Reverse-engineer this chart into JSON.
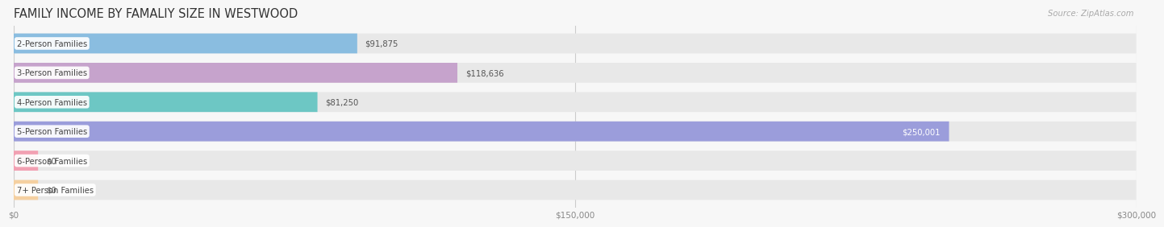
{
  "title": "FAMILY INCOME BY FAMALIY SIZE IN WESTWOOD",
  "source": "Source: ZipAtlas.com",
  "categories": [
    "2-Person Families",
    "3-Person Families",
    "4-Person Families",
    "5-Person Families",
    "6-Person Families",
    "7+ Person Families"
  ],
  "values": [
    91875,
    118636,
    81250,
    250001,
    0,
    0
  ],
  "bar_colors": [
    "#8abde0",
    "#c6a3cc",
    "#6dc7c4",
    "#9b9ddb",
    "#f2a0b2",
    "#f5d0a0"
  ],
  "label_colors": [
    "#555555",
    "#555555",
    "#555555",
    "#ffffff",
    "#555555",
    "#555555"
  ],
  "xlim": [
    0,
    300000
  ],
  "xticks": [
    0,
    150000,
    300000
  ],
  "xtick_labels": [
    "$0",
    "$150,000",
    "$300,000"
  ],
  "background_color": "#f7f7f7",
  "bar_bg_color": "#e8e8e8",
  "title_fontsize": 10.5,
  "label_fontsize": 7.2,
  "value_fontsize": 7.2,
  "tick_fontsize": 7.5,
  "source_fontsize": 7.2,
  "bar_height": 0.68,
  "fig_width": 14.06,
  "fig_height": 3.05
}
